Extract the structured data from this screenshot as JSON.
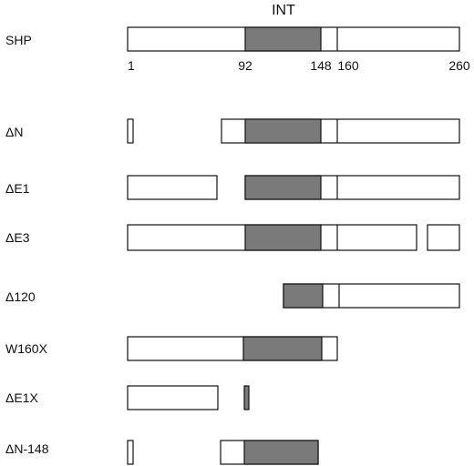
{
  "diagram": {
    "title": "INT",
    "domain_colors": {
      "box": "#ffffff",
      "interaction_domain": "#7a7a7a",
      "outline": "#111111"
    },
    "reference": {
      "label": "SHP",
      "ticks": [
        "1",
        "92",
        "148",
        "160",
        "260"
      ]
    },
    "constructs": [
      {
        "label": "ΔN"
      },
      {
        "label": "ΔE1"
      },
      {
        "label": "ΔE3"
      },
      {
        "label": "Δ120"
      },
      {
        "label": "W160X"
      },
      {
        "label": "ΔE1X"
      },
      {
        "label": "ΔN-148"
      }
    ]
  }
}
